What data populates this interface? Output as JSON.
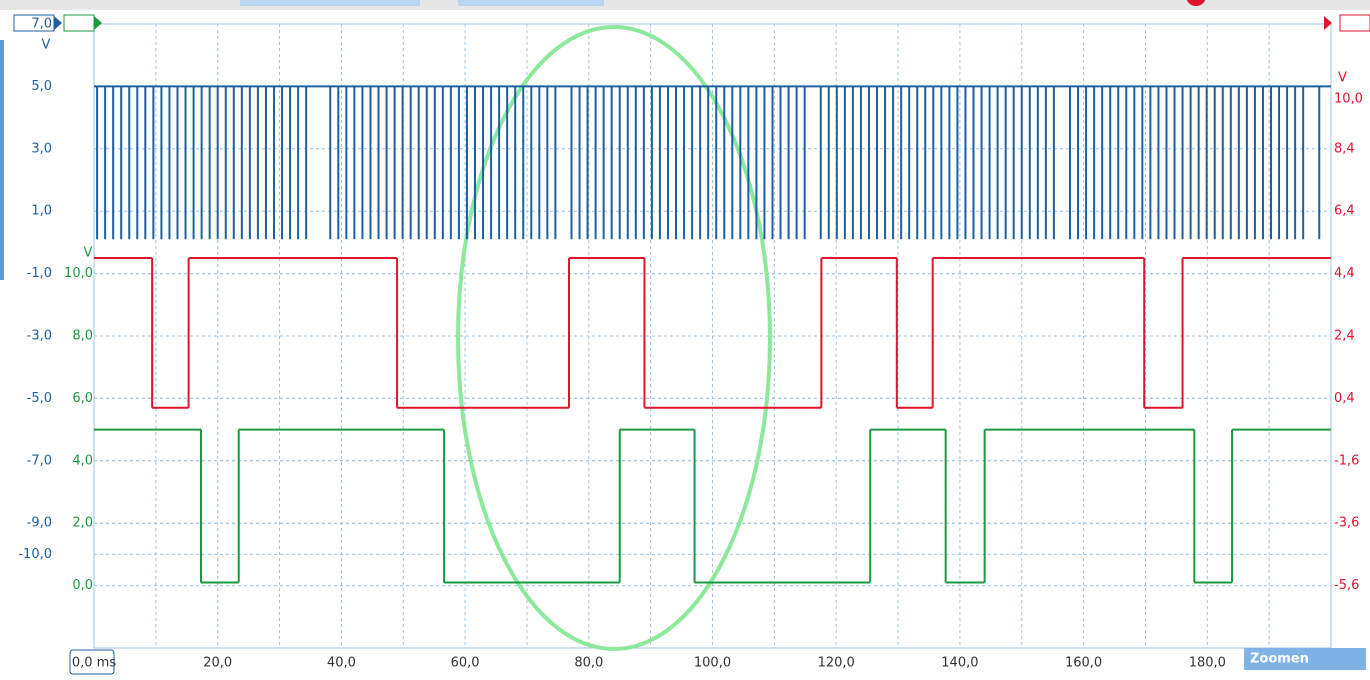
{
  "chart_data": {
    "type": "scope",
    "xlim": [
      0,
      200
    ],
    "xticks": [
      {
        "value": 0,
        "label": "0,0 ms"
      },
      {
        "value": 20,
        "label": "20,0"
      },
      {
        "value": 40,
        "label": "40,0"
      },
      {
        "value": 60,
        "label": "60,0"
      },
      {
        "value": 80,
        "label": "80,0"
      },
      {
        "value": 100,
        "label": "100,0"
      },
      {
        "value": 120,
        "label": "120,0"
      },
      {
        "value": 140,
        "label": "140,0"
      },
      {
        "value": 160,
        "label": "160,0"
      },
      {
        "value": 180,
        "label": "180,0"
      }
    ],
    "xminorticks": [
      10,
      30,
      50,
      70,
      90,
      110,
      130,
      150,
      170,
      190
    ],
    "ylabel": "V",
    "ylim": [
      -13,
      7
    ],
    "yticks": [
      {
        "value": 7,
        "label": "7,0"
      },
      {
        "value": 5,
        "label": "5,0"
      },
      {
        "value": 3,
        "label": "3,0"
      },
      {
        "value": 1,
        "label": "1,0"
      },
      {
        "value": -1,
        "label": "-1,0"
      },
      {
        "value": -3,
        "label": "-3,0"
      },
      {
        "value": -5,
        "label": "-5,0"
      },
      {
        "value": -7,
        "label": "-7,0"
      },
      {
        "value": -9,
        "label": "-9,0"
      },
      {
        "value": -10,
        "label": "-10,0"
      }
    ],
    "y2label": "V",
    "y2lim": [
      -7.6,
      12.4
    ],
    "y2ticks": [
      {
        "value": 10,
        "label": "10,0"
      },
      {
        "value": 8.4,
        "label": "8,4"
      },
      {
        "value": 6.4,
        "label": "6,4"
      },
      {
        "value": 4.4,
        "label": "4,4"
      },
      {
        "value": 2.4,
        "label": "2,4"
      },
      {
        "value": 0.4,
        "label": "0,4"
      },
      {
        "value": -1.6,
        "label": "-1,6"
      },
      {
        "value": -3.6,
        "label": "-3,6"
      },
      {
        "value": -5.6,
        "label": "-5,6"
      }
    ],
    "y3label": "V",
    "y3lim": [
      -2,
      18
    ],
    "y3ticks": [
      {
        "value": 10,
        "label": "10,0"
      },
      {
        "value": 8,
        "label": "8,0"
      },
      {
        "value": 6,
        "label": "6,0"
      },
      {
        "value": 4,
        "label": "4,0"
      },
      {
        "value": 2,
        "label": "2,0"
      },
      {
        "value": 0,
        "label": "0,0"
      }
    ],
    "grid": true,
    "series": [
      {
        "color": "#1f5f9e",
        "axis": "y",
        "high": 5.0,
        "low": 0.1,
        "pulses": [
          0.5,
          1.8,
          3.1,
          4.4,
          5.7,
          7.0,
          8.3,
          9.6,
          10.9,
          12.2,
          13.5,
          14.8,
          16.1,
          17.4,
          18.7,
          20.0,
          21.3,
          22.6,
          23.9,
          25.2,
          26.5,
          27.8,
          29.1,
          30.4,
          31.7,
          33.0,
          34.3,
          38.2,
          39.5,
          40.8,
          42.1,
          43.4,
          44.7,
          46.0,
          47.3,
          48.6,
          49.9,
          51.2,
          52.5,
          53.8,
          55.1,
          56.4,
          57.7,
          59.0,
          60.3,
          61.6,
          62.9,
          64.2,
          65.5,
          66.8,
          68.1,
          69.4,
          70.7,
          72.0,
          73.3,
          74.6,
          77.2,
          78.5,
          79.8,
          81.1,
          82.4,
          83.7,
          85.0,
          86.3,
          87.6,
          88.9,
          90.2,
          91.5,
          92.8,
          94.1,
          95.4,
          96.7,
          98.0,
          99.3,
          100.6,
          101.9,
          103.2,
          104.5,
          105.8,
          107.1,
          108.4,
          109.7,
          111.0,
          112.3,
          113.6,
          114.9,
          117.5,
          118.8,
          120.1,
          121.4,
          122.7,
          124.0,
          125.3,
          126.6,
          127.9,
          129.2,
          130.5,
          131.8,
          133.1,
          134.4,
          135.7,
          137.0,
          138.3,
          139.6,
          140.9,
          142.2,
          143.5,
          144.8,
          146.1,
          147.4,
          148.7,
          150.0,
          151.3,
          152.6,
          153.9,
          155.2,
          157.8,
          159.1,
          160.4,
          161.7,
          163.0,
          164.3,
          165.6,
          166.9,
          168.2,
          169.5,
          170.8,
          172.1,
          173.4,
          174.7,
          176.0,
          177.3,
          178.6,
          179.9,
          181.2,
          182.5,
          183.8,
          185.1,
          186.4,
          187.7,
          189.0,
          190.3,
          191.6,
          192.9,
          194.2,
          195.5,
          198.1
        ]
      },
      {
        "color": "#e0142c",
        "axis": "y2",
        "x": [
          0,
          9.4,
          15.3,
          49.0,
          76.8,
          89.0,
          117.6,
          129.8,
          135.6,
          169.8,
          176.0
        ],
        "values": [
          4.9,
          0.1,
          4.9,
          0.1,
          4.9,
          0.1,
          4.9,
          0.1,
          4.9,
          0.1,
          4.9
        ]
      },
      {
        "color": "#1a9a40",
        "axis": "y3",
        "x": [
          0,
          17.3,
          23.4,
          56.6,
          85.0,
          97.1,
          125.5,
          137.7,
          144.0,
          177.9,
          184.0
        ],
        "values": [
          5.0,
          0.1,
          5.0,
          0.1,
          5.0,
          0.1,
          5.0,
          0.1,
          5.0,
          0.1,
          5.0
        ]
      }
    ]
  },
  "ui": {
    "zoom_button": "Zoomen"
  }
}
